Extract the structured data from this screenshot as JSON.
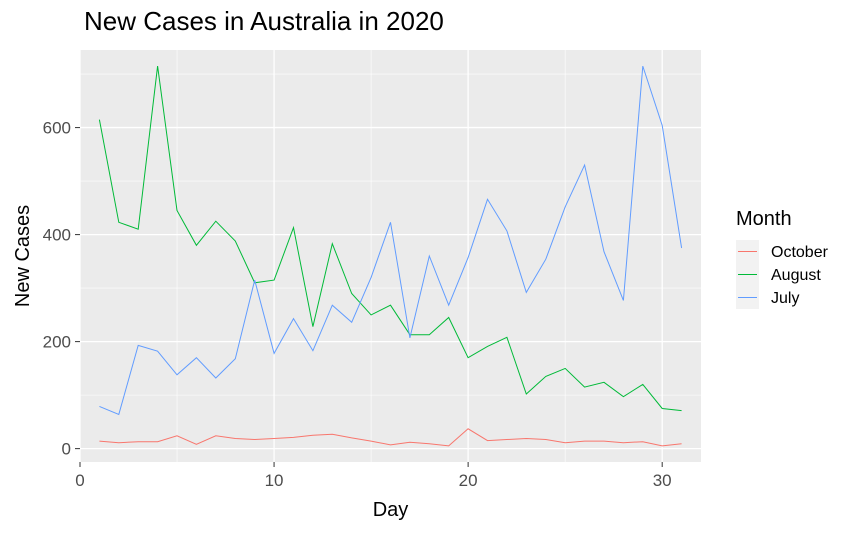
{
  "chart_data": {
    "type": "line",
    "title": "New Cases in Australia in 2020",
    "xlabel": "Day",
    "ylabel": "New Cases",
    "xlim": [
      0,
      32
    ],
    "ylim": [
      -25,
      745
    ],
    "x_ticks": [
      "0",
      "10",
      "20",
      "30"
    ],
    "y_ticks": [
      "0",
      "200",
      "400",
      "600"
    ],
    "x_tick_values": [
      0,
      10,
      20,
      30
    ],
    "y_tick_values": [
      0,
      200,
      400,
      600
    ],
    "grid": true,
    "legend": {
      "title": "Month",
      "position": "right"
    },
    "x": [
      1,
      2,
      3,
      4,
      5,
      6,
      7,
      8,
      9,
      10,
      11,
      12,
      13,
      14,
      15,
      16,
      17,
      18,
      19,
      20,
      21,
      22,
      23,
      24,
      25,
      26,
      27,
      28,
      29,
      30,
      31
    ],
    "series": [
      {
        "name": "October",
        "color": "#F8766D",
        "values": [
          14,
          11,
          13,
          13,
          24,
          8,
          24,
          19,
          17,
          19,
          21,
          25,
          27,
          20,
          14,
          7,
          12,
          9,
          5,
          37,
          15,
          17,
          19,
          17,
          11,
          14,
          14,
          11,
          13,
          5,
          9
        ]
      },
      {
        "name": "August",
        "color": "#00BA38",
        "values": [
          615,
          423,
          410,
          715,
          445,
          380,
          425,
          388,
          310,
          315,
          413,
          228,
          383,
          290,
          250,
          268,
          213,
          213,
          245,
          170,
          191,
          208,
          102,
          135,
          150,
          115,
          124,
          97,
          120,
          75,
          71
        ]
      },
      {
        "name": "July",
        "color": "#619CFF",
        "values": [
          79,
          64,
          193,
          182,
          138,
          170,
          132,
          168,
          315,
          178,
          243,
          183,
          268,
          236,
          320,
          423,
          207,
          360,
          268,
          357,
          466,
          407,
          292,
          354,
          452,
          530,
          368,
          277,
          715,
          604,
          375
        ]
      }
    ]
  }
}
